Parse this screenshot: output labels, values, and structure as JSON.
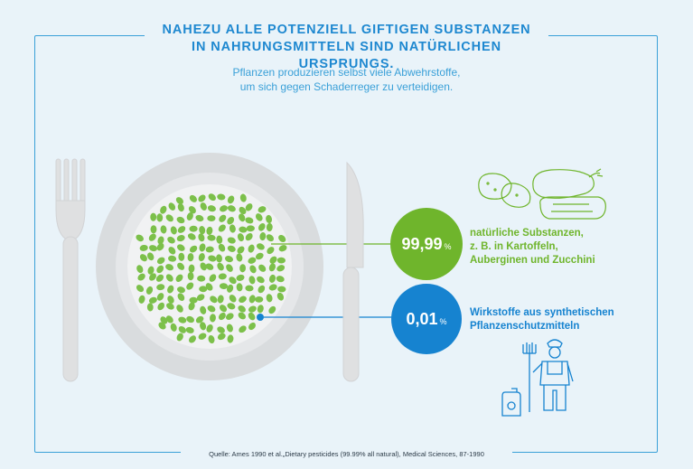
{
  "header": {
    "title_line1": "NAHEZU ALLE POTENZIELL GIFTIGEN SUBSTANZEN",
    "title_line2": "IN NAHRUNGSMITTELN SIND NATÜRLICHEN URSPRUNGS.",
    "subtitle_line1": "Pflanzen produzieren selbst viele Abwehrstoffe,",
    "subtitle_line2": "um sich gegen Schaderreger zu verteidigen."
  },
  "stats": {
    "natural": {
      "value": "99,99",
      "unit": "%",
      "label_line1": "natürliche Substanzen,",
      "label_line2": "z. B. in Kartoffeln,",
      "label_line3": "Auberginen und Zucchini",
      "color": "#6fb52c"
    },
    "synthetic": {
      "value": "0,01",
      "unit": "%",
      "label_line1": "Wirkstoffe aus synthetischen",
      "label_line2": "Pflanzenschutzmitteln",
      "color": "#1683d0"
    }
  },
  "footer": {
    "source": "Quelle: Ames 1990 et al.„Dietary pesticides (99.99% all natural), Medical Sciences, 87-1990"
  },
  "icons": [
    "fork-icon",
    "plate-icon",
    "knife-icon",
    "vegetables-icon",
    "farmer-icon",
    "canister-icon"
  ],
  "colors": {
    "accent": "#3aa0d8",
    "green": "#6fb52c",
    "blue": "#1683d0",
    "background": "#e9f3f9"
  }
}
